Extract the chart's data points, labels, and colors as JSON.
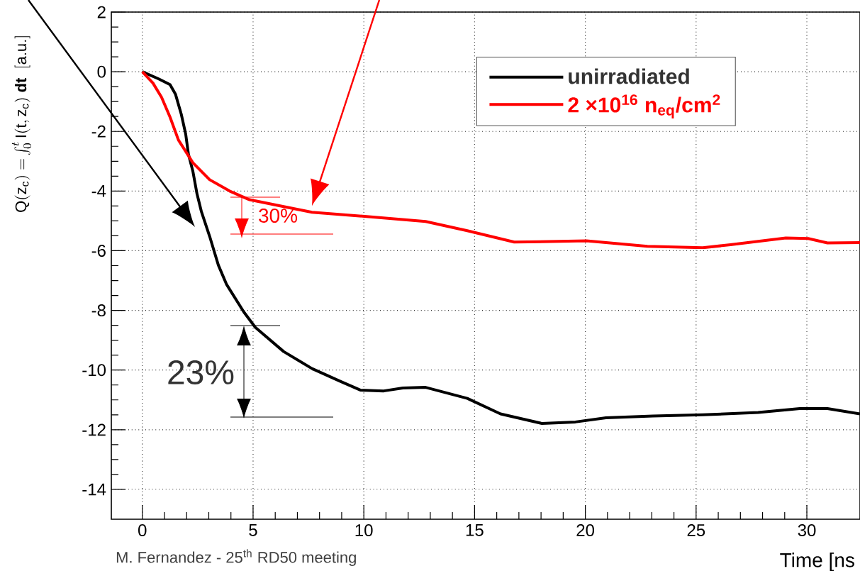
{
  "chart_data": {
    "type": "line",
    "xlabel": "Time [ns",
    "ylabel": "\\mathrm{Q(z_{c})=}\\int_{0}^{t}\\mathrm{I(t,z_{c})}\\;\\mathbf{dt}\\;\\;\\mathrm{[a.u.]}",
    "xlim": [
      -1.4,
      32.4
    ],
    "ylim": [
      -15,
      2
    ],
    "xticks": [
      0,
      5,
      10,
      15,
      20,
      25,
      30
    ],
    "yticks": [
      -14,
      -12,
      -10,
      -8,
      -6,
      -4,
      -2,
      0,
      2
    ],
    "grid": true,
    "legend": "top right",
    "series": [
      {
        "name": "unirradiated",
        "color": "#000000",
        "x": [
          0,
          0.74,
          1.25,
          1.5,
          1.76,
          1.96,
          2.08,
          2.28,
          2.47,
          2.66,
          3.04,
          3.43,
          3.81,
          4.58,
          5.1,
          6.38,
          7.66,
          8.94,
          9.84,
          10.9,
          11.76,
          12.79,
          14.67,
          16.17,
          18.04,
          19.55,
          20.93,
          23.05,
          25.3,
          27.8,
          29.68,
          30.93,
          32.4
        ],
        "values": [
          0,
          -0.24,
          -0.43,
          -0.76,
          -1.43,
          -2.1,
          -2.76,
          -3.33,
          -4.1,
          -4.67,
          -5.52,
          -6.48,
          -7.14,
          -8.05,
          -8.57,
          -9.38,
          -9.95,
          -10.38,
          -10.67,
          -10.7,
          -10.6,
          -10.58,
          -10.95,
          -11.47,
          -11.79,
          -11.74,
          -11.6,
          -11.54,
          -11.5,
          -11.42,
          -11.29,
          -11.29,
          -11.47
        ]
      },
      {
        "name": "2 ×10$^{16}$ n$_{eq}$/cm$^{2}$",
        "color": "#ff0000",
        "x": [
          0,
          0.48,
          0.87,
          1.25,
          1.63,
          2.28,
          3.04,
          3.94,
          4.84,
          6.38,
          7.66,
          10.22,
          12.79,
          14.67,
          16.79,
          20.05,
          22.8,
          25.3,
          26.55,
          29.05,
          30.06,
          30.93,
          32.4
        ],
        "values": [
          0,
          -0.38,
          -0.86,
          -1.52,
          -2.29,
          -3.05,
          -3.62,
          -4.0,
          -4.29,
          -4.52,
          -4.71,
          -4.86,
          -5.02,
          -5.33,
          -5.71,
          -5.67,
          -5.85,
          -5.9,
          -5.8,
          -5.57,
          -5.59,
          -5.74,
          -5.73
        ]
      }
    ],
    "annotations": [
      "23%",
      "30%",
      "M. Fernandez - 25$^{th}$ RD50 meeting"
    ]
  }
}
